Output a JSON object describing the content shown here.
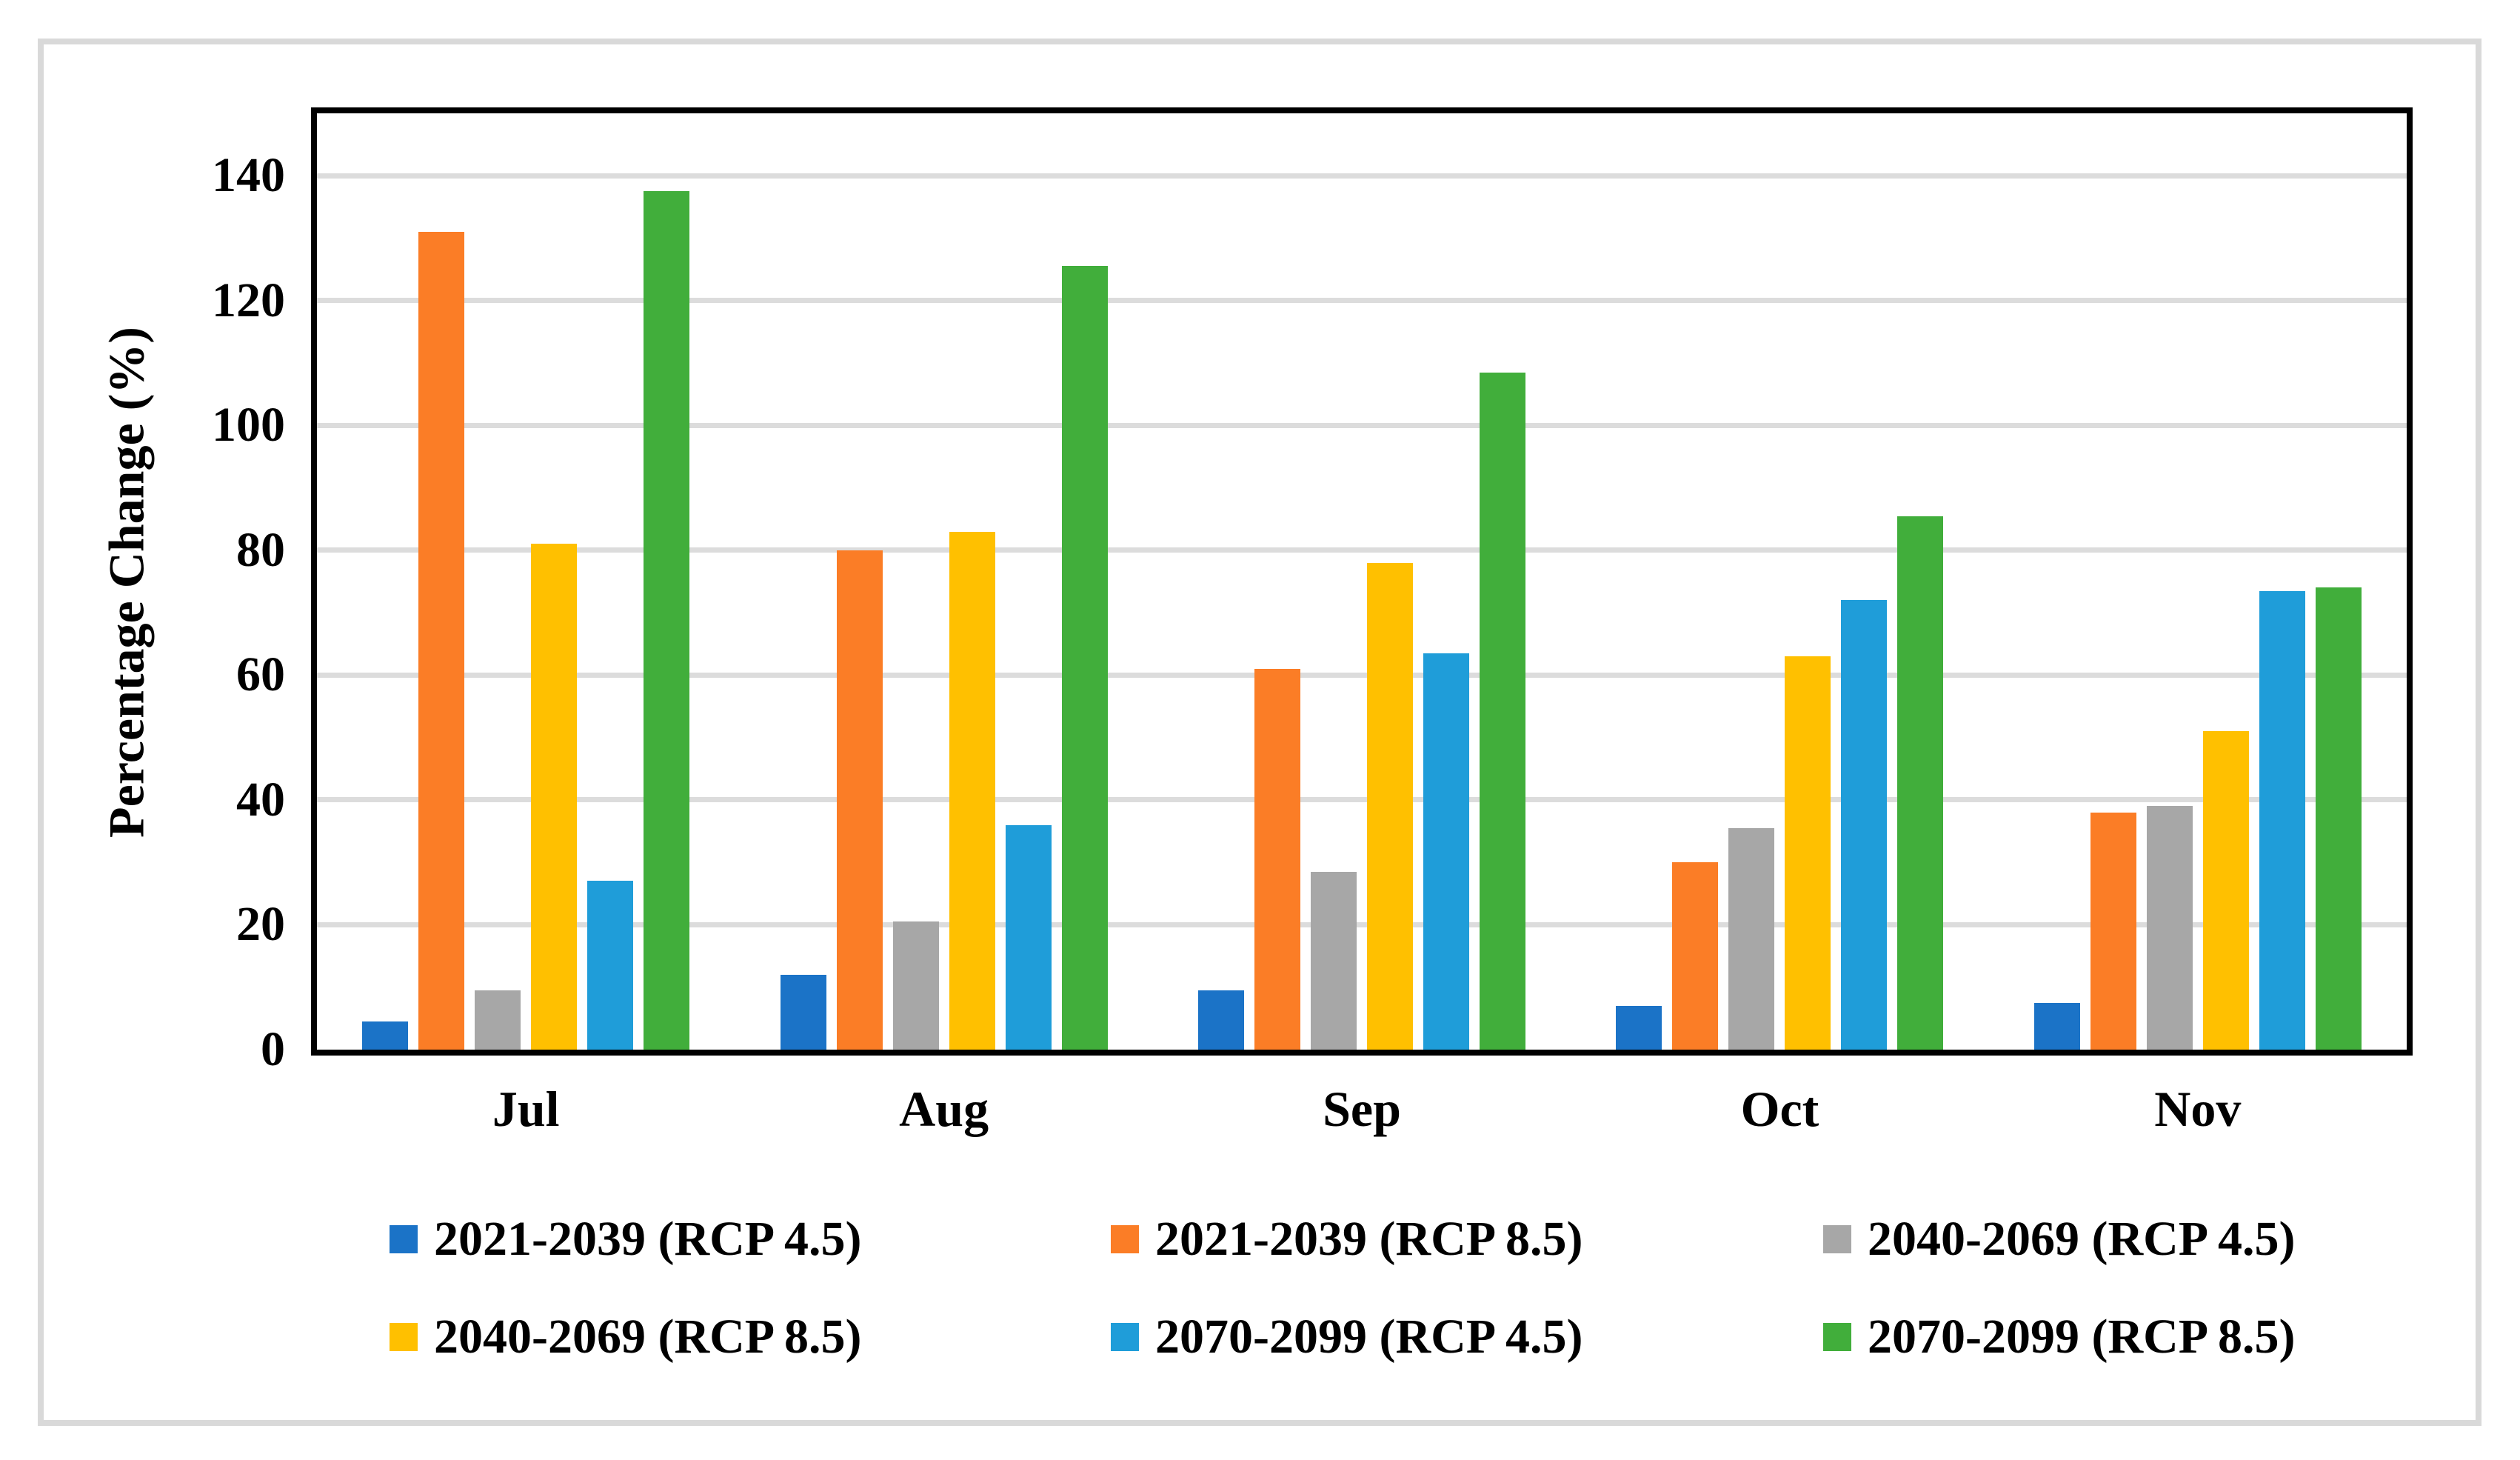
{
  "figure": {
    "background": "#FFFFFF",
    "frame_color": "#D9D9D9",
    "plot_border_color": "#000000",
    "gridline_color": "#DCDCDC"
  },
  "chart_data": {
    "type": "bar",
    "title": "",
    "xlabel": "",
    "ylabel": "Percentage Change (%)",
    "ylim": [
      0,
      150
    ],
    "yticks": [
      0,
      20,
      40,
      60,
      80,
      100,
      120,
      140
    ],
    "grid": "horizontal",
    "legend_position": "bottom",
    "categories": [
      "Jul",
      "Aug",
      "Sep",
      "Oct",
      "Nov"
    ],
    "series": [
      {
        "name": "2021-2039 (RCP 4.5)",
        "color": "#1B73C7",
        "values": [
          4.5,
          12,
          9.5,
          7,
          7.5
        ]
      },
      {
        "name": "2021-2039 (RCP 8.5)",
        "color": "#FB7D26",
        "values": [
          131,
          80,
          61,
          30,
          38
        ]
      },
      {
        "name": "2040-2069 (RCP 4.5)",
        "color": "#A7A7A7",
        "values": [
          9.5,
          20.5,
          28.5,
          35.5,
          39
        ]
      },
      {
        "name": "2040-2069 (RCP 8.5)",
        "color": "#FFC000",
        "values": [
          81,
          83,
          78,
          63,
          51
        ]
      },
      {
        "name": "2070-2099 (RCP 4.5)",
        "color": "#1F9DD9",
        "values": [
          27,
          36,
          63.5,
          72,
          73.5
        ]
      },
      {
        "name": "2070-2099 (RCP 8.5)",
        "color": "#41AE3B",
        "values": [
          137.5,
          125.5,
          108.5,
          85.5,
          74
        ]
      }
    ]
  },
  "legend_layout": {
    "column_lefts": [
      526,
      1500,
      2462
    ],
    "row_tops": [
      1628,
      1760
    ]
  }
}
